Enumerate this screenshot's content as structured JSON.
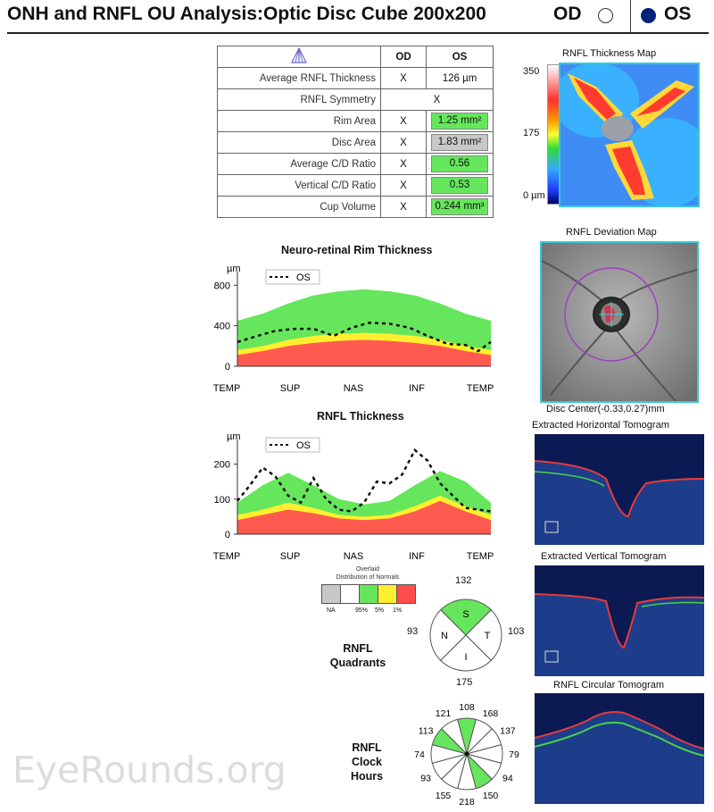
{
  "header": {
    "title": "ONH and RNFL OU Analysis:Optic Disc Cube 200x200",
    "od_label": "OD",
    "os_label": "OS",
    "selected_eye": "OS"
  },
  "params_table": {
    "col_od": "OD",
    "col_os": "OS",
    "rows": [
      {
        "label": "Average RNFL Thickness",
        "od": "X",
        "os": "126 µm",
        "status": "none"
      },
      {
        "label": "RNFL Symmetry",
        "od": "",
        "os": "X",
        "status": "none"
      },
      {
        "label": "Rim Area",
        "od": "X",
        "os": "1.25 mm²",
        "status": "green"
      },
      {
        "label": "Disc Area",
        "od": "X",
        "os": "1.83 mm²",
        "status": "grey"
      },
      {
        "label": "Average C/D Ratio",
        "od": "X",
        "os": "0.56",
        "status": "green"
      },
      {
        "label": "Vertical C/D Ratio",
        "od": "X",
        "os": "0.53",
        "status": "green"
      },
      {
        "label": "Cup Volume",
        "od": "X",
        "os": "0.244 mm³",
        "status": "green"
      }
    ]
  },
  "thickness_map": {
    "title": "RNFL Thickness Map",
    "scale_labels": [
      "350",
      "175",
      "0 µm"
    ]
  },
  "deviation_map": {
    "title": "RNFL Deviation Map",
    "disc_center": "Disc Center(-0.33,0.27)mm"
  },
  "tomograms": {
    "horizontal": "Extracted Horizontal Tomogram",
    "vertical": "Extracted Vertical Tomogram",
    "circular": "RNFL Circular Tomogram"
  },
  "rim_chart": {
    "title": "Neuro-retinal Rim Thickness",
    "unit": "µm",
    "legend": "OS",
    "x_labels": [
      "TEMP",
      "SUP",
      "NAS",
      "INF",
      "TEMP"
    ],
    "y_ticks": [
      "800",
      "400",
      "0"
    ]
  },
  "rnfl_chart": {
    "title": "RNFL Thickness",
    "unit": "µm",
    "legend": "OS",
    "x_labels": [
      "TEMP",
      "SUP",
      "NAS",
      "INF",
      "TEMP"
    ],
    "y_ticks": [
      "200",
      "100",
      "0"
    ]
  },
  "chart_data": [
    {
      "type": "area",
      "title": "Neuro-retinal Rim Thickness",
      "ylabel": "µm",
      "ylim": [
        0,
        900
      ],
      "x_range": [
        0,
        100
      ],
      "series": [
        {
          "name": "OS",
          "x": [
            0,
            8,
            15,
            23,
            30,
            38,
            45,
            52,
            60,
            68,
            75,
            83,
            90,
            95,
            100
          ],
          "values": [
            240,
            300,
            350,
            370,
            370,
            300,
            380,
            430,
            420,
            380,
            300,
            220,
            210,
            150,
            240
          ]
        }
      ]
    },
    {
      "type": "area",
      "title": "RNFL Thickness",
      "ylabel": "µm",
      "ylim": [
        0,
        260
      ],
      "x_range": [
        0,
        100
      ],
      "series": [
        {
          "name": "OS",
          "x": [
            0,
            5,
            10,
            15,
            20,
            25,
            30,
            35,
            40,
            45,
            50,
            55,
            60,
            65,
            70,
            75,
            80,
            85,
            90,
            95,
            100
          ],
          "values": [
            95,
            140,
            190,
            165,
            110,
            90,
            160,
            100,
            70,
            65,
            90,
            150,
            145,
            170,
            240,
            210,
            145,
            110,
            75,
            70,
            65
          ]
        }
      ]
    }
  ],
  "distribution_legend": {
    "title_line1": "Overlaid",
    "title_line2": "Distribution of Normals",
    "labels": [
      "NA",
      "95%",
      "5%",
      "1%"
    ]
  },
  "quadrants": {
    "label_line1": "RNFL",
    "label_line2": "Quadrants",
    "top": "132",
    "right": "103",
    "bottom": "175",
    "left": "93",
    "letters": [
      "S",
      "T",
      "I",
      "N"
    ],
    "colors": [
      "#66e65c",
      "#ffffff",
      "#ffffff",
      "#ffffff"
    ]
  },
  "clock_hours": {
    "label_line1": "RNFL",
    "label_line2": "Clock",
    "label_line3": "Hours",
    "values": [
      "108",
      "168",
      "137",
      "79",
      "94",
      "150",
      "218",
      "155",
      "93",
      "74",
      "113",
      "121"
    ],
    "colors": [
      "#66e65c",
      "#ffffff",
      "#ffffff",
      "#ffffff",
      "#ffffff",
      "#66e65c",
      "#ffffff",
      "#ffffff",
      "#ffffff",
      "#ffffff",
      "#66e65c",
      "#ffffff"
    ]
  },
  "watermark": "EyeRounds.org"
}
